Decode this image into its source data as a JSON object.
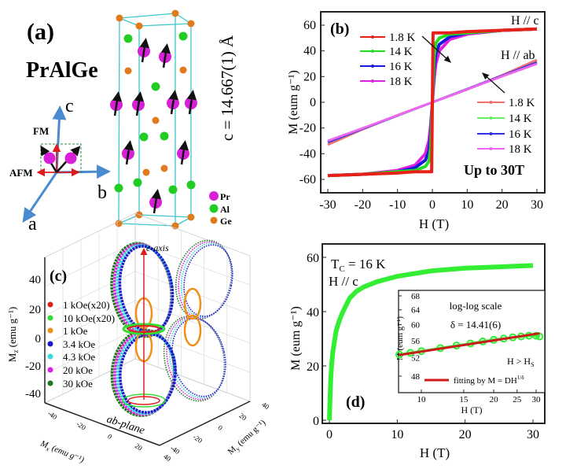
{
  "panel_a": {
    "label": "(a)",
    "compound": "PrAlGe",
    "lattice_c": "c = 14.667(1) Å",
    "axis_a": "a",
    "axis_b": "b",
    "axis_c": "c",
    "fm": "FM",
    "afm": "AFM",
    "legend": [
      {
        "label": "Pr",
        "color": "#d81fd8"
      },
      {
        "label": "Al",
        "color": "#22cc22"
      },
      {
        "label": "Ge",
        "color": "#e07a1a"
      }
    ]
  },
  "chart_data": [
    {
      "panel": "(b)",
      "type": "line",
      "xlabel": "H (T)",
      "ylabel": "M (eum g⁻¹)",
      "xlim": [
        -31.5,
        31.5
      ],
      "ylim": [
        -70,
        70
      ],
      "xticks": [
        -30,
        -20,
        -10,
        0,
        10,
        20,
        30
      ],
      "yticks": [
        -60,
        -40,
        -20,
        0,
        20,
        40,
        60
      ],
      "annotations": {
        "hc": "H // c",
        "hab": "H // ab",
        "up": "Up to 30T"
      },
      "series": [
        {
          "name": "18 K",
          "group": "H // c",
          "color": "#e020e0",
          "x": [
            -30,
            -20,
            -10,
            -5,
            -2,
            -1,
            -0.5,
            0,
            0.5,
            1,
            2,
            5,
            10,
            20,
            30
          ],
          "y": [
            -57,
            -56,
            -53,
            -49,
            -40,
            -30,
            -18,
            0,
            18,
            30,
            40,
            49,
            53,
            56,
            57
          ]
        },
        {
          "name": "16 K",
          "group": "H // c",
          "color": "#1a1adc",
          "x": [
            -30,
            -20,
            -10,
            -5,
            -2,
            -1,
            -0.5,
            0,
            0.5,
            1,
            2,
            5,
            10,
            20,
            30
          ],
          "y": [
            -57,
            -56,
            -54,
            -51,
            -45,
            -38,
            -25,
            0,
            25,
            38,
            45,
            51,
            54,
            56,
            57
          ]
        },
        {
          "name": "14 K",
          "group": "H // c",
          "color": "#22dd22",
          "x": [
            -30,
            -20,
            -10,
            -5,
            -2,
            -1,
            -0.5,
            0,
            0.5,
            1,
            2,
            5,
            10,
            20,
            30
          ],
          "y": [
            -57,
            -56,
            -54,
            -53,
            -50,
            -46,
            -36,
            0,
            36,
            46,
            50,
            53,
            54,
            56,
            57
          ]
        },
        {
          "name": "1.8 K",
          "group": "H // c",
          "color": "#e8201a",
          "x": [
            -30,
            -20,
            -10,
            -5,
            -0.2,
            0,
            0.2,
            5,
            10,
            20,
            30
          ],
          "y": [
            -57,
            -56,
            -55,
            -54,
            -54,
            0,
            54,
            54,
            55,
            56,
            57
          ]
        },
        {
          "name": "1.8 K",
          "group": "H // ab",
          "color": "#f07070",
          "x": [
            -30,
            -20,
            -10,
            0,
            10,
            20,
            30
          ],
          "y": [
            -33,
            -21,
            -10,
            0,
            10,
            21,
            33
          ]
        },
        {
          "name": "14 K",
          "group": "H // ab",
          "color": "#66ee66",
          "x": [
            -30,
            -20,
            -10,
            0,
            10,
            20,
            30
          ],
          "y": [
            -31,
            -20.5,
            -10.3,
            0,
            10.3,
            20.5,
            31
          ]
        },
        {
          "name": "16 K",
          "group": "H // ab",
          "color": "#3333dd",
          "x": [
            -30,
            -20,
            -10,
            0,
            10,
            20,
            30
          ],
          "y": [
            -31,
            -20.6,
            -10.3,
            0,
            10.3,
            20.6,
            31
          ]
        },
        {
          "name": "18 K",
          "group": "H // ab",
          "color": "#ee66ee",
          "x": [
            -30,
            -20,
            -10,
            0,
            10,
            20,
            30
          ],
          "y": [
            -30,
            -20.2,
            -10.1,
            0,
            10.1,
            20.2,
            30
          ]
        }
      ]
    },
    {
      "panel": "(c)",
      "type": "3d-polar",
      "zlabel": "M",
      "zlabel_sub": "z",
      "xlabel": "M",
      "xlabel_sub": "x",
      "ylabel": "M",
      "ylabel_sub": "y",
      "unit": " (emu g⁻¹)",
      "zticks": [
        "40",
        "20",
        "0",
        "-20",
        "-40"
      ],
      "xticks": [
        "-40",
        "-20",
        "0",
        "20",
        "40"
      ],
      "yticks": [
        "-40",
        "-20",
        "0",
        "20",
        "40"
      ],
      "annotations": {
        "c_axis": "c-axis",
        "ab_plane": "ab-plane"
      },
      "series": [
        {
          "name": "1    kOe(x20)",
          "color": "#e02020"
        },
        {
          "name": "10  kOe(x20)",
          "color": "#33dd33"
        },
        {
          "name": "1    kOe",
          "color": "#f0901a"
        },
        {
          "name": "3.4 kOe",
          "color": "#1a1acc"
        },
        {
          "name": "4.3 kOe",
          "color": "#33dddd"
        },
        {
          "name": "20  kOe",
          "color": "#dd22dd"
        },
        {
          "name": "30  kOe",
          "color": "#1f7a1f"
        }
      ]
    },
    {
      "panel": "(d)",
      "type": "scatter",
      "xlabel": "H (T)",
      "ylabel": "M (eum g⁻¹)",
      "xlim": [
        -1,
        32
      ],
      "ylim": [
        -1,
        64
      ],
      "xticks": [
        0,
        10,
        20,
        30
      ],
      "yticks": [
        0,
        20,
        40,
        60
      ],
      "annotations": {
        "tc_main": "T",
        "tc_sub": "C",
        "tc_rest": " = 16 K",
        "hc": "H // c"
      },
      "series": [
        {
          "color": "#33ee33",
          "x": [
            0,
            0.1,
            0.2,
            0.35,
            0.5,
            0.75,
            1,
            1.5,
            2,
            3,
            4,
            5,
            7,
            10,
            15,
            20,
            25,
            30
          ],
          "y": [
            0,
            8,
            15,
            21,
            25,
            29,
            33,
            37,
            40,
            45,
            47.5,
            49,
            51,
            53,
            55,
            56,
            56.5,
            57
          ]
        }
      ]
    },
    {
      "panel": "(d) inset",
      "type": "scatter",
      "scale": "log-log",
      "xlabel": "H (T)",
      "ylabel": "M (eum g⁻¹)",
      "xlim": [
        8.1,
        31
      ],
      "ylim": [
        44.3,
        69.6
      ],
      "xticks": [
        10,
        15,
        20,
        25,
        30
      ],
      "yticks": [
        48,
        52,
        56,
        60,
        64,
        68
      ],
      "annotations": {
        "scale": "log-log scale",
        "delta": "δ = 14.41(6)",
        "hs_main": "H > H",
        "hs_sub": "S"
      },
      "series": [
        {
          "name": "data",
          "color": "#33ee33",
          "x": [
            8.1,
            9,
            10,
            12,
            14,
            16,
            18,
            20,
            22,
            24,
            26,
            28,
            30,
            31
          ],
          "y": [
            52.7,
            53.1,
            53.5,
            54.2,
            54.8,
            55.3,
            55.8,
            56.2,
            56.5,
            56.8,
            57.0,
            57.2,
            57.2,
            57.0
          ]
        },
        {
          "name": "fitting by M = DH",
          "name_sup": "1/δ",
          "color": "#cc1a1a",
          "x": [
            8.1,
            31
          ],
          "y": [
            52.6,
            57.8
          ]
        }
      ]
    }
  ]
}
